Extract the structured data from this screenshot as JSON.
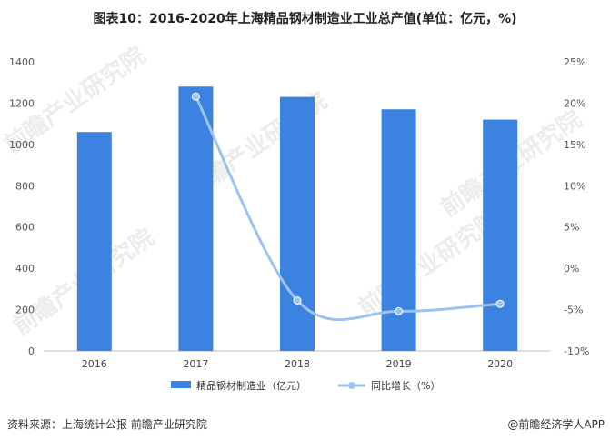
{
  "title": "图表10：2016-2020年上海精品钢材制造业工业总产值(单位：亿元，%)",
  "source": "资料来源：上海统计公报 前瞻产业研究院",
  "brand": "@前瞻经济学人APP",
  "watermark": "前瞻产业研究院",
  "colors": {
    "bar": "#3c82e0",
    "line": "#9ec2f0"
  },
  "chart_data": {
    "type": "bar+line",
    "categories": [
      "2016",
      "2017",
      "2018",
      "2019",
      "2020"
    ],
    "series": [
      {
        "name": "精品钢材制造业（亿元）",
        "type": "bar",
        "axis": "left",
        "values": [
          1060,
          1280,
          1230,
          1170,
          1120
        ]
      },
      {
        "name": "同比增长（%）",
        "type": "line",
        "axis": "right",
        "values": [
          null,
          20.8,
          -3.9,
          -5.2,
          -4.3
        ]
      }
    ],
    "y_left": {
      "min": 0,
      "max": 1400,
      "step": 200,
      "ticks": [
        "0",
        "200",
        "400",
        "600",
        "800",
        "1000",
        "1200",
        "1400"
      ]
    },
    "y_right": {
      "min": -10,
      "max": 25,
      "step": 5,
      "ticks": [
        "-10%",
        "-5%",
        "0%",
        "5%",
        "10%",
        "15%",
        "20%",
        "25%"
      ]
    },
    "legend_position": "bottom",
    "grid": false
  }
}
